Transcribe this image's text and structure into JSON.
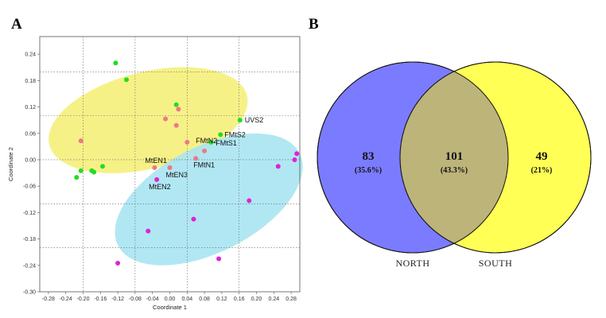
{
  "panels": {
    "a_label": "A",
    "b_label": "B"
  },
  "colors": {
    "ellipse_north": "#f5f07a",
    "ellipse_south": "#a9e4f2",
    "green": "#22dd22",
    "magenta": "#dd22dd",
    "pink": "#ee7788",
    "venn_north": "#7b7bff",
    "venn_south": "#ffff55",
    "venn_overlap": "#bdb47a"
  },
  "chart_data": [
    {
      "type": "scatter",
      "xlabel": "Coordinate 1",
      "ylabel": "Coordinate 2",
      "xlim": [
        -0.3,
        0.3
      ],
      "ylim": [
        -0.3,
        0.28
      ],
      "xticks": [
        -0.28,
        -0.24,
        -0.2,
        -0.16,
        -0.12,
        -0.08,
        -0.04,
        0.0,
        0.04,
        0.08,
        0.12,
        0.16,
        0.2,
        0.24,
        0.28
      ],
      "xtick_labels": [
        "-0.28",
        "-0.24",
        "-0.20",
        "-0.16",
        "-0.12",
        "-0.08",
        "-0.04",
        "0.00",
        "0.04",
        "0.08",
        "0.12",
        "0.16",
        "0.20",
        "0.24",
        "0.28"
      ],
      "yticks": [
        -0.3,
        -0.24,
        -0.18,
        -0.12,
        -0.06,
        0.0,
        0.06,
        0.12,
        0.18,
        0.24
      ],
      "ytick_labels": [
        "-0.30",
        "-0.24",
        "-0.18",
        "-0.12",
        "-0.06",
        "0.00",
        "0.06",
        "0.12",
        "0.18",
        "0.24"
      ],
      "xgrid": [
        -0.2,
        -0.08,
        0.04,
        0.16
      ],
      "ygrid": [
        -0.2,
        -0.1,
        0.0,
        0.1,
        0.2
      ],
      "ellipses": [
        {
          "name": "north",
          "color": "ellipse_north",
          "cx": -0.05,
          "cy": 0.09,
          "rx": 0.235,
          "ry": 0.11,
          "angle_deg": 14
        },
        {
          "name": "south",
          "color": "ellipse_south",
          "cx": 0.09,
          "cy": -0.09,
          "rx": 0.235,
          "ry": 0.12,
          "angle_deg": 27
        }
      ],
      "series": [
        {
          "name": "green",
          "color": "green",
          "points": [
            {
              "x": -0.125,
              "y": 0.22
            },
            {
              "x": -0.1,
              "y": 0.182
            },
            {
              "x": 0.015,
              "y": 0.125
            },
            {
              "x": -0.205,
              "y": -0.025
            },
            {
              "x": -0.18,
              "y": -0.025
            },
            {
              "x": -0.175,
              "y": -0.028
            },
            {
              "x": -0.155,
              "y": -0.015
            },
            {
              "x": -0.215,
              "y": -0.04
            },
            {
              "x": 0.162,
              "y": 0.09
            },
            {
              "x": 0.117,
              "y": 0.057
            },
            {
              "x": 0.095,
              "y": 0.04
            }
          ]
        },
        {
          "name": "magenta",
          "color": "magenta",
          "points": [
            {
              "x": 0.293,
              "y": 0.014
            },
            {
              "x": 0.288,
              "y": 0.0
            },
            {
              "x": 0.25,
              "y": -0.015
            },
            {
              "x": 0.183,
              "y": -0.093
            },
            {
              "x": 0.055,
              "y": -0.135
            },
            {
              "x": -0.05,
              "y": -0.162
            },
            {
              "x": 0.113,
              "y": -0.225
            },
            {
              "x": -0.12,
              "y": -0.235
            },
            {
              "x": -0.03,
              "y": -0.045
            }
          ]
        },
        {
          "name": "pink",
          "color": "pink",
          "points": [
            {
              "x": -0.01,
              "y": 0.093
            },
            {
              "x": 0.02,
              "y": 0.115
            },
            {
              "x": 0.015,
              "y": 0.078
            },
            {
              "x": -0.205,
              "y": 0.043
            },
            {
              "x": 0.04,
              "y": 0.04
            },
            {
              "x": 0.08,
              "y": 0.02
            },
            {
              "x": 0.06,
              "y": 0.003
            },
            {
              "x": -0.035,
              "y": -0.018
            },
            {
              "x": 0.0,
              "y": -0.018
            }
          ]
        }
      ],
      "annotations": [
        {
          "text": "UVS2",
          "x": 0.162,
          "y": 0.09
        },
        {
          "text": "FMtS2",
          "x": 0.117,
          "y": 0.057
        },
        {
          "text": "FMtN2",
          "x": 0.08,
          "y": 0.02
        },
        {
          "text": "FMtS1",
          "x": 0.095,
          "y": 0.04
        },
        {
          "text": "FMtN1",
          "x": 0.06,
          "y": 0.003
        },
        {
          "text": "MtEN1",
          "x": -0.035,
          "y": -0.018
        },
        {
          "text": "MtEN3",
          "x": 0.0,
          "y": -0.018
        },
        {
          "text": "MtEN2",
          "x": -0.03,
          "y": -0.045
        }
      ]
    },
    {
      "type": "venn",
      "sets": [
        {
          "name": "NORTH",
          "only_count": "83",
          "only_pct": "(35.6%)"
        },
        {
          "name": "SOUTH",
          "only_count": "49",
          "only_pct": "(21%)"
        }
      ],
      "intersection": {
        "count": "101",
        "pct": "(43.3%)"
      }
    }
  ]
}
